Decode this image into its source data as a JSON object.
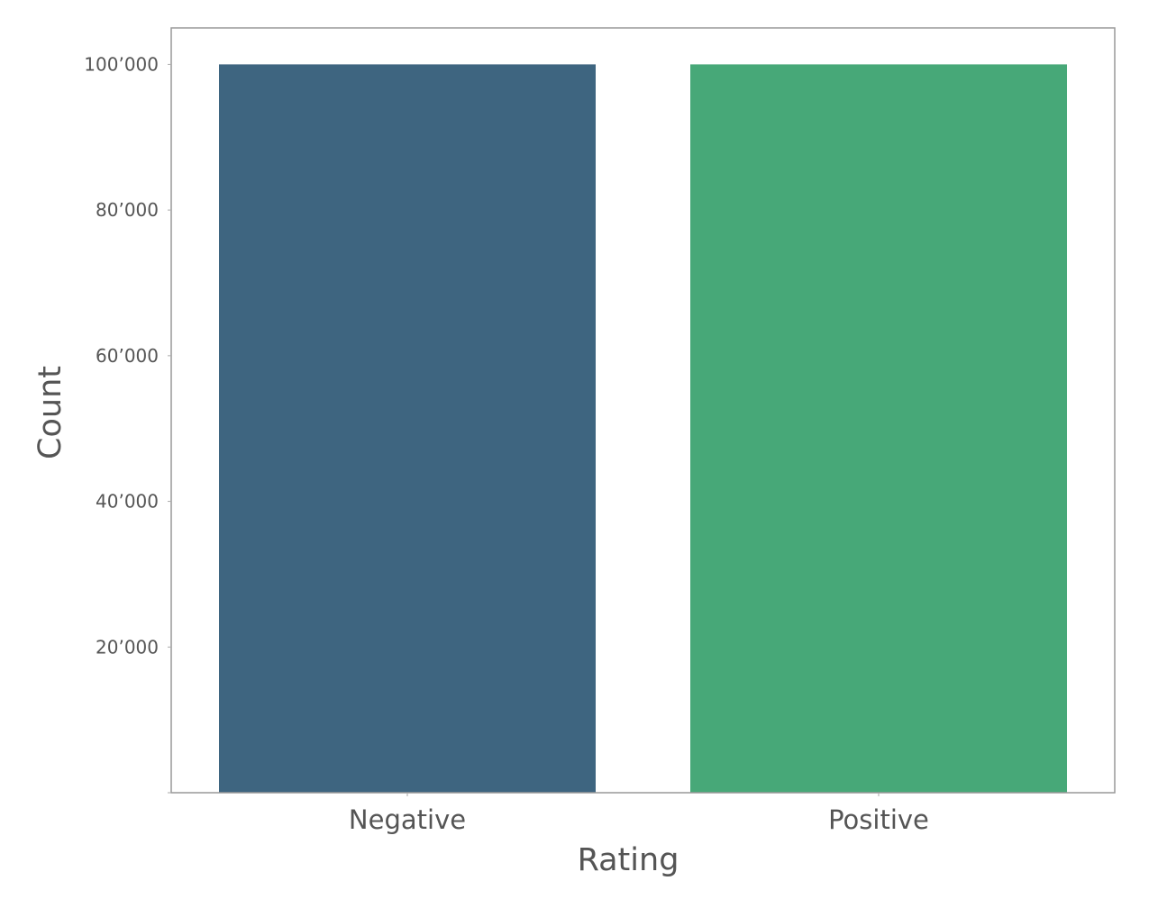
{
  "chart_data": {
    "type": "bar",
    "categories": [
      "Negative",
      "Positive"
    ],
    "values": [
      100000,
      100000
    ],
    "xlabel": "Rating",
    "ylabel": "Count",
    "ylim": [
      0,
      105000
    ],
    "yticks": [
      20000,
      40000,
      60000,
      80000,
      100000
    ],
    "ytick_labels": [
      "20’000",
      "40’000",
      "60’000",
      "80’000",
      "100’000"
    ],
    "bar_colors": [
      "#3e6580",
      "#47a878"
    ],
    "grid": false,
    "legend": "none",
    "frame_color": "#999999",
    "text_color": "#555555"
  }
}
